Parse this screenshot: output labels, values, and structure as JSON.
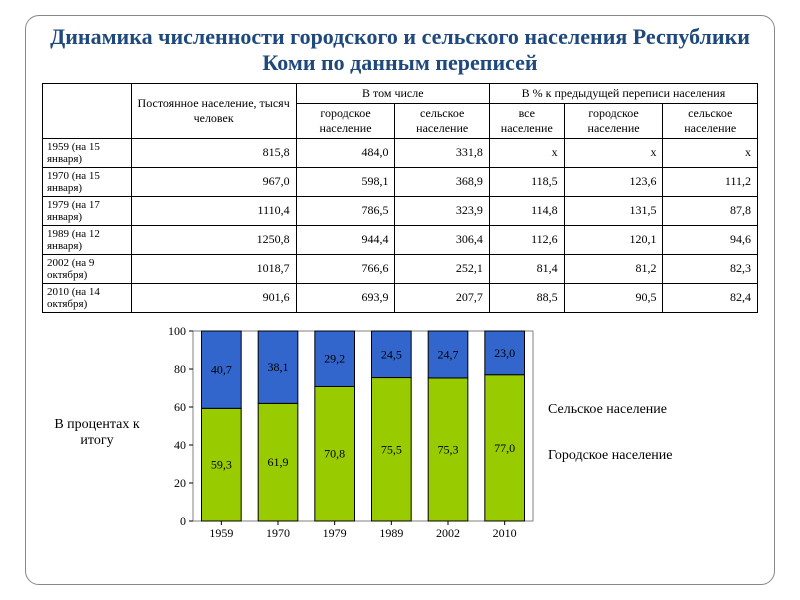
{
  "title": "Динамика численности городского и сельского населения Республики Коми по данным переписей",
  "table": {
    "headers": {
      "permanent": "Постоянное население, тысяч человек",
      "including": "В том числе",
      "pct_prev": "В % к предыдущей переписи населения",
      "urban": "городское население",
      "rural": "сельское население",
      "all": "все население",
      "urban2": "городское население",
      "rural2": "сельское население"
    },
    "rows": [
      {
        "label": "1959 (на 15 января)",
        "v": [
          "815,8",
          "484,0",
          "331,8",
          "x",
          "x",
          "x"
        ]
      },
      {
        "label": "1970 (на 15 января)",
        "v": [
          "967,0",
          "598,1",
          "368,9",
          "118,5",
          "123,6",
          "111,2"
        ]
      },
      {
        "label": "1979 (на 17 января)",
        "v": [
          "1110,4",
          "786,5",
          "323,9",
          "114,8",
          "131,5",
          "87,8"
        ]
      },
      {
        "label": "1989 (на 12 января)",
        "v": [
          "1250,8",
          "944,4",
          "306,4",
          "112,6",
          "120,1",
          "94,6"
        ]
      },
      {
        "label": "2002 (на 9 октября)",
        "v": [
          "1018,7",
          "766,6",
          "252,1",
          "81,4",
          "81,2",
          "82,3"
        ]
      },
      {
        "label": "2010 (на 14 октября)",
        "v": [
          "901,6",
          "693,9",
          "207,7",
          "88,5",
          "90,5",
          "82,4"
        ]
      }
    ]
  },
  "chart": {
    "type": "stacked-bar",
    "background_color": "#ffffff",
    "plot_border_color": "#808080",
    "tick_color": "#000000",
    "grid_color": "#c0c0c0",
    "axis_fontsize": 12,
    "value_fontsize": 12,
    "ylim": [
      0,
      100
    ],
    "ytick_step": 20,
    "bar_colors": {
      "urban": "#99cc00",
      "rural": "#3366cc"
    },
    "value_text_color": "#000000",
    "bar_outline": "#000000",
    "bar_width": 0.7,
    "categories": [
      "1959",
      "1970",
      "1979",
      "1989",
      "2002",
      "2010"
    ],
    "urban": [
      "59,3",
      "61,9",
      "70,8",
      "75,5",
      "75,3",
      "77,0"
    ],
    "rural": [
      "40,7",
      "38,1",
      "29,2",
      "24,5",
      "24,7",
      "23,0"
    ],
    "urban_n": [
      59.3,
      61.9,
      70.8,
      75.5,
      75.3,
      77.0
    ],
    "rural_n": [
      40.7,
      38.1,
      29.2,
      24.5,
      24.7,
      23.0
    ]
  },
  "labels": {
    "left": "В процентах к итогу",
    "legend_rural": "Сельское население",
    "legend_urban": "Городское население"
  }
}
